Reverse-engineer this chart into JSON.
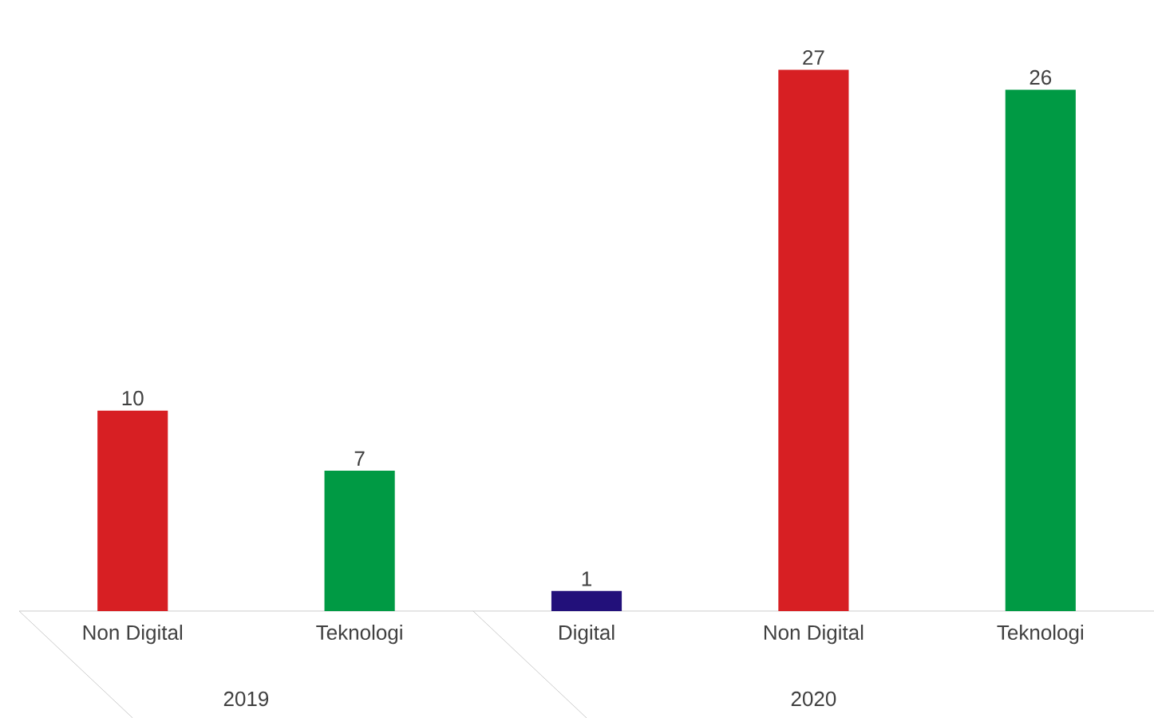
{
  "chart_data": {
    "type": "bar",
    "categories": [
      "Non Digital",
      "Teknologi",
      "Digital",
      "Non Digital",
      "Teknologi"
    ],
    "values": [
      10,
      7,
      1,
      27,
      26
    ],
    "colors": [
      "#d71f23",
      "#009a44",
      "#22107a",
      "#d71f23",
      "#009a44"
    ],
    "data_labels": true,
    "annotations": [
      "2019",
      "2020"
    ]
  }
}
